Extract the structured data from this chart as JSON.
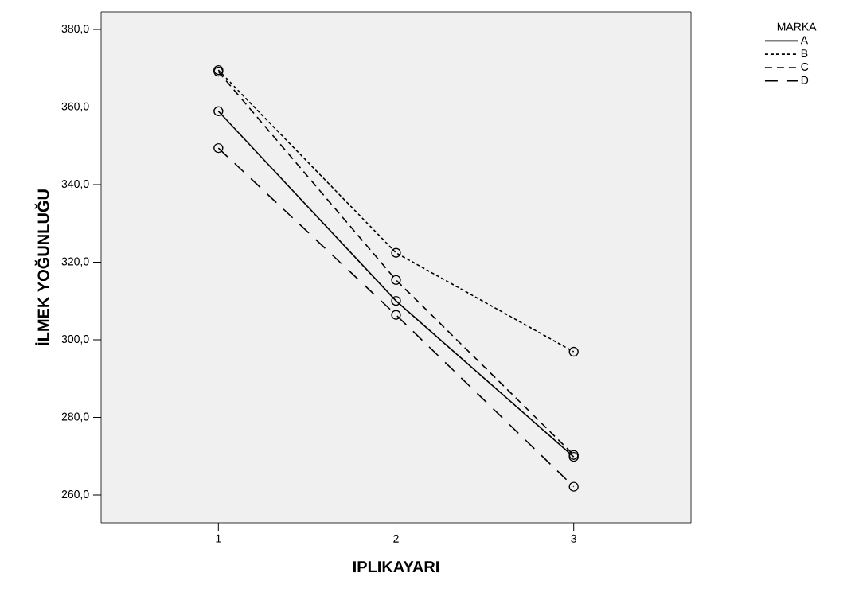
{
  "chart_data": {
    "type": "line",
    "xlabel": "IPLIKAYARI",
    "ylabel": "İLMEK YOĞUNLUĞU",
    "legend_title": "MARKA",
    "categories": [
      "1",
      "2",
      "3"
    ],
    "series": [
      {
        "name": "A",
        "color": "#000000",
        "line_style": "solid",
        "values": [
          358.9,
          310.0,
          269.8
        ]
      },
      {
        "name": "B",
        "color": "#000000",
        "line_style": "dotted",
        "values": [
          369.5,
          322.4,
          296.9
        ]
      },
      {
        "name": "C",
        "color": "#000000",
        "line_style": "dashed",
        "values": [
          369.1,
          315.4,
          270.3
        ]
      },
      {
        "name": "D",
        "color": "#000000",
        "line_style": "loosely dashed",
        "values": [
          349.4,
          306.4,
          262.1
        ]
      }
    ],
    "ylim": [
      252.8,
      384.5
    ],
    "yticks": [
      {
        "value": 260,
        "label": "260,0"
      },
      {
        "value": 280,
        "label": "280,0"
      },
      {
        "value": 300,
        "label": "300,0"
      },
      {
        "value": 320,
        "label": "320,0"
      },
      {
        "value": 340,
        "label": "340,0"
      },
      {
        "value": 360,
        "label": "360,0"
      },
      {
        "value": 380,
        "label": "380,0"
      }
    ],
    "marker": "circle",
    "legend": "top right",
    "grid": false
  }
}
